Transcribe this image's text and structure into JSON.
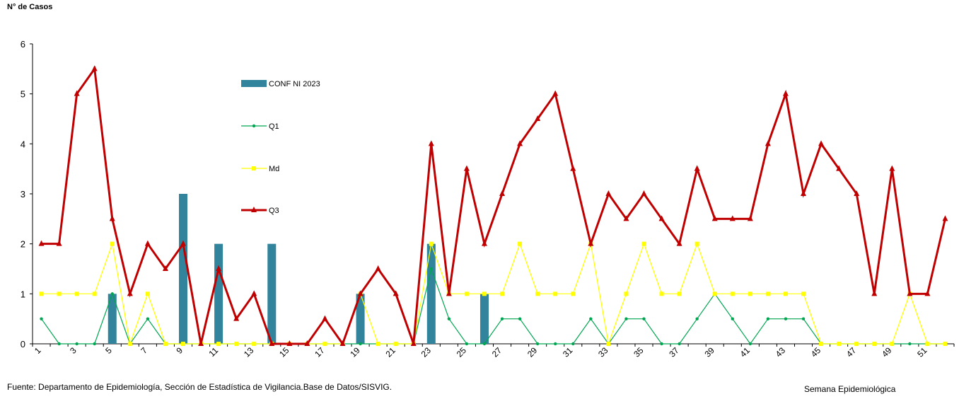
{
  "chart_data": {
    "type": "bar+line",
    "ylabel": "N° de Casos",
    "xlabel": "Semana Epidemiológica",
    "source": "Fuente: Departamento de Epidemiología, Sección de Estadística de Vigilancia.Base de Datos/SISVIG.",
    "ylim": [
      0,
      6
    ],
    "yticks": [
      0,
      1,
      2,
      3,
      4,
      5,
      6
    ],
    "x": [
      1,
      2,
      3,
      4,
      5,
      6,
      7,
      8,
      9,
      10,
      11,
      12,
      13,
      14,
      15,
      16,
      17,
      18,
      19,
      20,
      21,
      22,
      23,
      24,
      25,
      26,
      27,
      28,
      29,
      30,
      31,
      32,
      33,
      34,
      35,
      36,
      37,
      38,
      39,
      40,
      41,
      42,
      43,
      44,
      45,
      46,
      47,
      48,
      49,
      50,
      51,
      52
    ],
    "xtick_labels": [
      "1",
      "3",
      "5",
      "7",
      "9",
      "11",
      "13",
      "15",
      "17",
      "19",
      "21",
      "23",
      "25",
      "27",
      "29",
      "31",
      "33",
      "35",
      "37",
      "39",
      "41",
      "43",
      "45",
      "47",
      "49",
      "51"
    ],
    "legend": [
      {
        "name": "CONF NI 2023",
        "color": "#31849B"
      },
      {
        "name": "Q1",
        "color": "#00A651"
      },
      {
        "name": "Md",
        "color": "#FFFF00"
      },
      {
        "name": "Q3",
        "color": "#C00000"
      }
    ],
    "series": [
      {
        "name": "CONF NI 2023",
        "kind": "bar",
        "color": "#31849B",
        "values": [
          0,
          0,
          0,
          0,
          1,
          0,
          0,
          0,
          3,
          0,
          2,
          0,
          0,
          2,
          0,
          0,
          0,
          0,
          1,
          0,
          0,
          0,
          2,
          0,
          0,
          1,
          0,
          0,
          0,
          0,
          0,
          0,
          0,
          0,
          0,
          0,
          0,
          0,
          0,
          0,
          0,
          0,
          0,
          0,
          0,
          0,
          0,
          0,
          0,
          0,
          0,
          0
        ]
      },
      {
        "name": "Q1",
        "kind": "line",
        "color": "#00A651",
        "values": [
          0.5,
          0,
          0,
          0,
          1,
          0,
          0.5,
          0,
          0,
          0,
          0,
          0,
          0,
          0,
          0,
          0,
          0,
          0,
          0,
          0,
          0,
          0,
          1.5,
          0.5,
          0,
          0,
          0.5,
          0.5,
          0,
          0,
          0,
          0.5,
          0,
          0.5,
          0.5,
          0,
          0,
          0.5,
          1,
          0.5,
          0,
          0.5,
          0.5,
          0.5,
          0,
          0,
          0,
          0,
          0,
          0,
          0,
          0
        ]
      },
      {
        "name": "Md",
        "kind": "line",
        "color": "#FFFF00",
        "values": [
          1,
          1,
          1,
          1,
          2,
          0,
          1,
          0,
          0,
          0,
          0,
          0,
          0,
          0,
          0,
          0,
          0,
          0,
          1,
          0,
          0,
          0,
          2,
          1,
          1,
          1,
          1,
          2,
          1,
          1,
          1,
          2,
          0,
          1,
          2,
          1,
          1,
          2,
          1,
          1,
          1,
          1,
          1,
          1,
          0,
          0,
          0,
          0,
          0,
          1,
          0,
          0
        ]
      },
      {
        "name": "Q3",
        "kind": "line",
        "color": "#C00000",
        "values": [
          2,
          2,
          5,
          5.5,
          2.5,
          1,
          2,
          1.5,
          2,
          0,
          1.5,
          0.5,
          1,
          0,
          0,
          0,
          0.5,
          0,
          1,
          1.5,
          1,
          0,
          4,
          1,
          3.5,
          2,
          3,
          4,
          4.5,
          5,
          3.5,
          2,
          3,
          2.5,
          3,
          2.5,
          2,
          3.5,
          2.5,
          2.5,
          2.5,
          4,
          5,
          3,
          4,
          3.5,
          3,
          1,
          3.5,
          1,
          1,
          2.5
        ]
      }
    ]
  }
}
